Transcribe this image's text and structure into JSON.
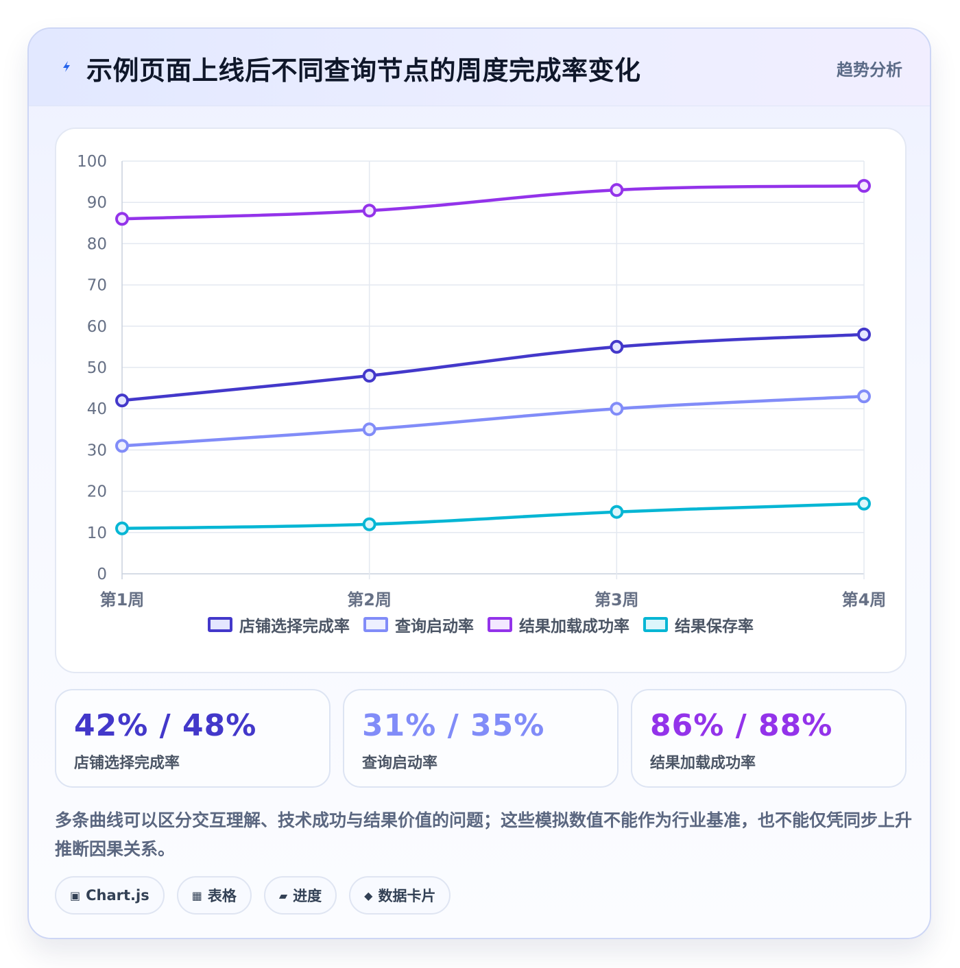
{
  "header": {
    "title": "示例页面上线后不同查询节点的周度完成率变化",
    "tag": "趋势分析",
    "icon": "lightning-icon"
  },
  "chart_data": {
    "type": "line",
    "categories": [
      "第1周",
      "第2周",
      "第3周",
      "第4周"
    ],
    "series": [
      {
        "name": "店铺选择完成率",
        "values": [
          42,
          48,
          55,
          58
        ],
        "color": "#4338ca",
        "fill": "#e4e6ff"
      },
      {
        "name": "查询启动率",
        "values": [
          31,
          35,
          40,
          43
        ],
        "color": "#818cf8",
        "fill": "#eef0ff"
      },
      {
        "name": "结果加载成功率",
        "values": [
          86,
          88,
          93,
          94
        ],
        "color": "#9333ea",
        "fill": "#f3e8ff"
      },
      {
        "name": "结果保存率",
        "values": [
          11,
          12,
          15,
          17
        ],
        "color": "#06b6d4",
        "fill": "#dcf6fb"
      }
    ],
    "ylim": [
      0,
      100
    ],
    "yticks": [
      0,
      10,
      20,
      30,
      40,
      50,
      60,
      70,
      80,
      90,
      100
    ],
    "grid": true,
    "legend_position": "bottom"
  },
  "stats": [
    {
      "value": "42% / 48%",
      "label": "店铺选择完成率",
      "color": "#4338ca"
    },
    {
      "value": "31% / 35%",
      "label": "查询启动率",
      "color": "#818cf8"
    },
    {
      "value": "86% / 88%",
      "label": "结果加载成功率",
      "color": "#9333ea"
    }
  ],
  "note": "多条曲线可以区分交互理解、技术成功与结果价值的问题；这些模拟数值不能作为行业基准，也不能仅凭同步上升推断因果关系。",
  "chips": [
    {
      "icon": "▣",
      "icon_name": "chart-icon",
      "label": "Chart.js"
    },
    {
      "icon": "▦",
      "icon_name": "table-icon",
      "label": "表格"
    },
    {
      "icon": "▰",
      "icon_name": "progress-icon",
      "label": "进度"
    },
    {
      "icon": "◆",
      "icon_name": "card-icon",
      "label": "数据卡片"
    }
  ]
}
